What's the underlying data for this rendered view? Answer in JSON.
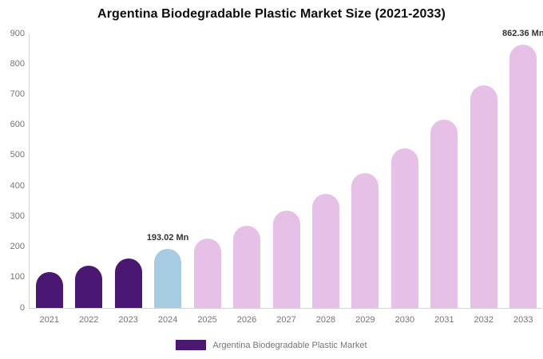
{
  "title": "Argentina Biodegradable Plastic Market Size (2021-2033)",
  "legend": {
    "label": "Argentina Biodegradable Plastic Market"
  },
  "colors": {
    "past": "#4A1772",
    "base_year": "#A5CCE1",
    "forecast": "#E7C0E8",
    "axis": "#d4d4d4",
    "tick_text": "#757575",
    "annotation_text": "#333333"
  },
  "chart_data": {
    "type": "bar",
    "title": "Argentina Biodegradable Plastic Market Size (2021-2033)",
    "categories": [
      "2021",
      "2022",
      "2023",
      "2024",
      "2025",
      "2026",
      "2027",
      "2028",
      "2029",
      "2030",
      "2031",
      "2032",
      "2033"
    ],
    "values": [
      117,
      138,
      163,
      193.02,
      228,
      269,
      318,
      375,
      443,
      523,
      618,
      730,
      862.36
    ],
    "bar_color_keys": [
      "past",
      "past",
      "past",
      "base_year",
      "forecast",
      "forecast",
      "forecast",
      "forecast",
      "forecast",
      "forecast",
      "forecast",
      "forecast",
      "forecast"
    ],
    "xlabel": "",
    "ylabel": "",
    "ylim": [
      0,
      900
    ],
    "yticks": [
      0,
      100,
      200,
      300,
      400,
      500,
      600,
      700,
      800,
      900
    ],
    "grid": false,
    "legend_position": "bottom-center",
    "legend_entries": [
      "Argentina Biodegradable Plastic Market"
    ],
    "annotations": [
      {
        "category": "2024",
        "text": "193.02 Mn"
      },
      {
        "category": "2033",
        "text": "862.36 Mn"
      }
    ]
  }
}
